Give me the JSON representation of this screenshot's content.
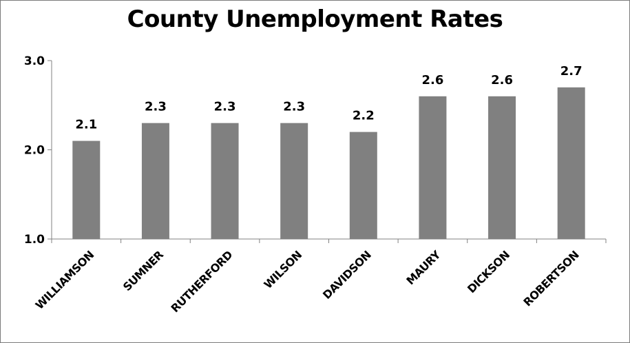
{
  "chart_data": {
    "type": "bar",
    "title": "County Unemployment Rates",
    "xlabel": "",
    "ylabel": "",
    "categories": [
      "WILLIAMSON",
      "SUMNER",
      "RUTHERFORD",
      "WILSON",
      "DAVIDSON",
      "MAURY",
      "DICKSON",
      "ROBERTSON"
    ],
    "values": [
      2.1,
      2.3,
      2.3,
      2.3,
      2.2,
      2.6,
      2.6,
      2.7
    ],
    "value_labels": [
      "2.1",
      "2.3",
      "2.3",
      "2.3",
      "2.2",
      "2.6",
      "2.6",
      "2.7"
    ],
    "ylim": [
      1.0,
      3.0
    ],
    "yticks": [
      1.0,
      2.0,
      3.0
    ],
    "ytick_labels": [
      "1.0",
      "2.0",
      "3.0"
    ],
    "grid": false,
    "legend": "none",
    "bar_color": "#808080"
  }
}
